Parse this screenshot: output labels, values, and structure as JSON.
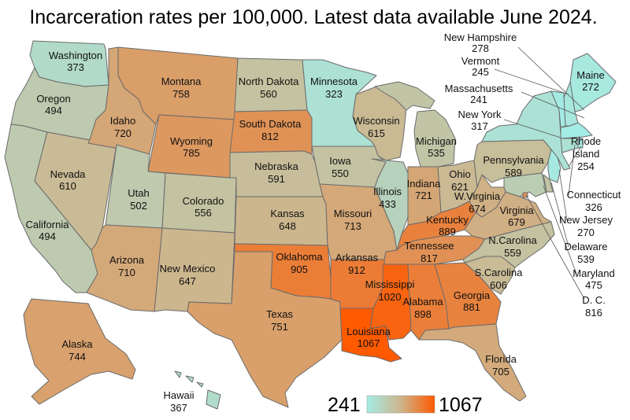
{
  "title": "Incarceration rates per 100,000. Latest data available June 2024.",
  "colors": {
    "low": "#a4ece6",
    "high": "#ff5a00",
    "border": "#6b6b6b"
  },
  "legend": {
    "min_label": "241",
    "max_label": "1067",
    "min": 241,
    "max": 1067
  },
  "states": [
    {
      "id": "WA",
      "name": "Washington",
      "value": "373"
    },
    {
      "id": "OR",
      "name": "Oregon",
      "value": "494"
    },
    {
      "id": "CA",
      "name": "California",
      "value": "494"
    },
    {
      "id": "NV",
      "name": "Nevada",
      "value": "610"
    },
    {
      "id": "ID",
      "name": "Idaho",
      "value": "720"
    },
    {
      "id": "MT",
      "name": "Montana",
      "value": "758"
    },
    {
      "id": "WY",
      "name": "Wyoming",
      "value": "785"
    },
    {
      "id": "UT",
      "name": "Utah",
      "value": "502"
    },
    {
      "id": "AZ",
      "name": "Arizona",
      "value": "710"
    },
    {
      "id": "CO",
      "name": "Colorado",
      "value": "556"
    },
    {
      "id": "NM",
      "name": "New Mexico",
      "value": "647"
    },
    {
      "id": "ND",
      "name": "North Dakota",
      "value": "560"
    },
    {
      "id": "SD",
      "name": "South Dakota",
      "value": "812"
    },
    {
      "id": "NE",
      "name": "Nebraska",
      "value": "591"
    },
    {
      "id": "KS",
      "name": "Kansas",
      "value": "648"
    },
    {
      "id": "OK",
      "name": "Oklahoma",
      "value": "905"
    },
    {
      "id": "TX",
      "name": "Texas",
      "value": "751"
    },
    {
      "id": "MN",
      "name": "Minnesota",
      "value": "323"
    },
    {
      "id": "IA",
      "name": "Iowa",
      "value": "550"
    },
    {
      "id": "MO",
      "name": "Missouri",
      "value": "713"
    },
    {
      "id": "AR",
      "name": "Arkansas",
      "value": "912"
    },
    {
      "id": "LA",
      "name": "Louisiana",
      "value": "1067"
    },
    {
      "id": "WI",
      "name": "Wisconsin",
      "value": "615"
    },
    {
      "id": "IL",
      "name": "Illinois",
      "value": "433"
    },
    {
      "id": "MI",
      "name": "Michigan",
      "value": "535"
    },
    {
      "id": "IN",
      "name": "Indiana",
      "value": "721"
    },
    {
      "id": "OH",
      "name": "Ohio",
      "value": "621"
    },
    {
      "id": "KY",
      "name": "Kentucky",
      "value": "889"
    },
    {
      "id": "TN",
      "name": "Tennessee",
      "value": "817"
    },
    {
      "id": "MS",
      "name": "Mississippi",
      "value": "1020"
    },
    {
      "id": "AL",
      "name": "Alabama",
      "value": "898"
    },
    {
      "id": "GA",
      "name": "Georgia",
      "value": "881"
    },
    {
      "id": "FL",
      "name": "Florida",
      "value": "705"
    },
    {
      "id": "SC",
      "name": "S.Carolina",
      "value": "606"
    },
    {
      "id": "NC",
      "name": "N.Carolina",
      "value": "559"
    },
    {
      "id": "VA",
      "name": "Virginia",
      "value": "679"
    },
    {
      "id": "WV",
      "name": "W.Virginia",
      "value": "674"
    },
    {
      "id": "PA",
      "name": "Pennsylvania",
      "value": "589"
    },
    {
      "id": "NY",
      "name": "New York",
      "value": "317"
    },
    {
      "id": "ME",
      "name": "Maine",
      "value": "272"
    },
    {
      "id": "NH",
      "name": "New Hampshire",
      "value": "278"
    },
    {
      "id": "VT",
      "name": "Vermont",
      "value": "245"
    },
    {
      "id": "MA",
      "name": "Massachusetts",
      "value": "241"
    },
    {
      "id": "RI",
      "name": "Rhode Island",
      "value": "254"
    },
    {
      "id": "CT",
      "name": "Connecticut",
      "value": "326"
    },
    {
      "id": "NJ",
      "name": "New Jersey",
      "value": "270"
    },
    {
      "id": "DE",
      "name": "Delaware",
      "value": "539"
    },
    {
      "id": "MD",
      "name": "Maryland",
      "value": "475"
    },
    {
      "id": "DC",
      "name": "D. C.",
      "value": "816"
    },
    {
      "id": "AK",
      "name": "Alaska",
      "value": "744"
    },
    {
      "id": "HI",
      "name": "Hawaii",
      "value": "367"
    }
  ]
}
